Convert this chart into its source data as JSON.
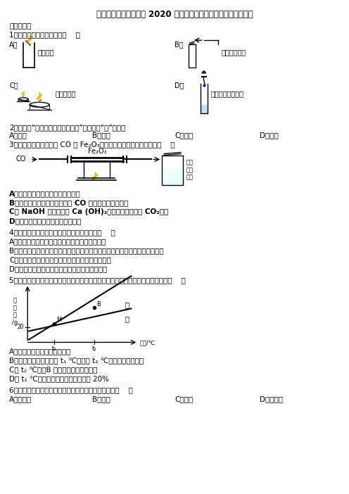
{
  "title": "山东省菏泽鄄城县联考 2020 届化学九年级上学期期末调研测试题",
  "bg_color": "#ffffff",
  "text_color": "#000000",
  "q1_label": "1．下列实验操作正确的是（    ）",
  "q2_label": "2．广告词“儿童厌食，补锨是关键”。这里的“镈”指的是",
  "q3_label": "3．某同学用如装置进行 CO 与 Fe₂O₃的反应，下列说法不正确的是（    ）",
  "q4_label": "4．下列对有关实验现象的描述中，错误的是（    ）",
  "q5_label": "5．下图是甲、乙两种固体物质（不含结晶水）的溶解度曲线。下列说法正确的是（    ）",
  "q6_label": "6．构成下列物质的微粒与构成冰的微粒种类相同的是（    ）"
}
